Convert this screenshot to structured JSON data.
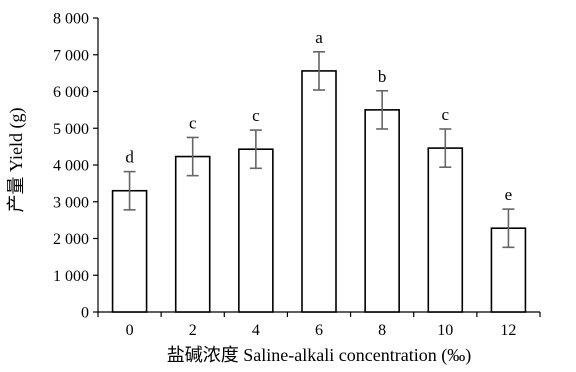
{
  "chart_data": {
    "type": "bar",
    "xlabel": "盐碱浓度 Saline-alkali concentration (‰)",
    "ylabel": "产量 Yield (g)",
    "ylim": [
      0,
      8000
    ],
    "yticks": [
      0,
      1000,
      2000,
      3000,
      4000,
      5000,
      6000,
      7000,
      8000
    ],
    "ytick_labels": [
      "0",
      "1 000",
      "2 000",
      "3 000",
      "4 000",
      "5 000",
      "6 000",
      "7 000",
      "8 000"
    ],
    "categories": [
      "0",
      "2",
      "4",
      "6",
      "8",
      "10",
      "12"
    ],
    "values": [
      3300,
      4230,
      4430,
      6560,
      5500,
      4460,
      2280
    ],
    "errors": [
      520,
      520,
      520,
      520,
      520,
      520,
      520
    ],
    "significance": [
      "d",
      "c",
      "c",
      "a",
      "b",
      "c",
      "e"
    ],
    "colors": {
      "bar_fill": "#ffffff",
      "bar_stroke": "#000000",
      "error_bar": "#666666"
    },
    "grid": false,
    "legend": "none"
  }
}
